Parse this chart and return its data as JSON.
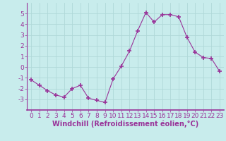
{
  "x": [
    0,
    1,
    2,
    3,
    4,
    5,
    6,
    7,
    8,
    9,
    10,
    11,
    12,
    13,
    14,
    15,
    16,
    17,
    18,
    19,
    20,
    21,
    22,
    23
  ],
  "y": [
    -1.2,
    -1.7,
    -2.2,
    -2.6,
    -2.8,
    -2.0,
    -1.7,
    -2.9,
    -3.1,
    -3.3,
    -1.1,
    0.1,
    1.5,
    3.4,
    5.1,
    4.2,
    4.9,
    4.9,
    4.7,
    2.8,
    1.4,
    0.9,
    0.8,
    -0.4
  ],
  "line_color": "#993399",
  "marker": "+",
  "marker_size": 4,
  "bg_color": "#c8ecec",
  "grid_color": "#b0d8d8",
  "xlabel": "Windchill (Refroidissement éolien,°C)",
  "ylim": [
    -4,
    6
  ],
  "xlim": [
    -0.5,
    23.5
  ],
  "yticks": [
    -3,
    -2,
    -1,
    0,
    1,
    2,
    3,
    4,
    5
  ],
  "xticks": [
    0,
    1,
    2,
    3,
    4,
    5,
    6,
    7,
    8,
    9,
    10,
    11,
    12,
    13,
    14,
    15,
    16,
    17,
    18,
    19,
    20,
    21,
    22,
    23
  ],
  "tick_color": "#993399",
  "label_color": "#993399",
  "axis_color": "#993399",
  "font_size": 6.5,
  "xlabel_fontsize": 7
}
